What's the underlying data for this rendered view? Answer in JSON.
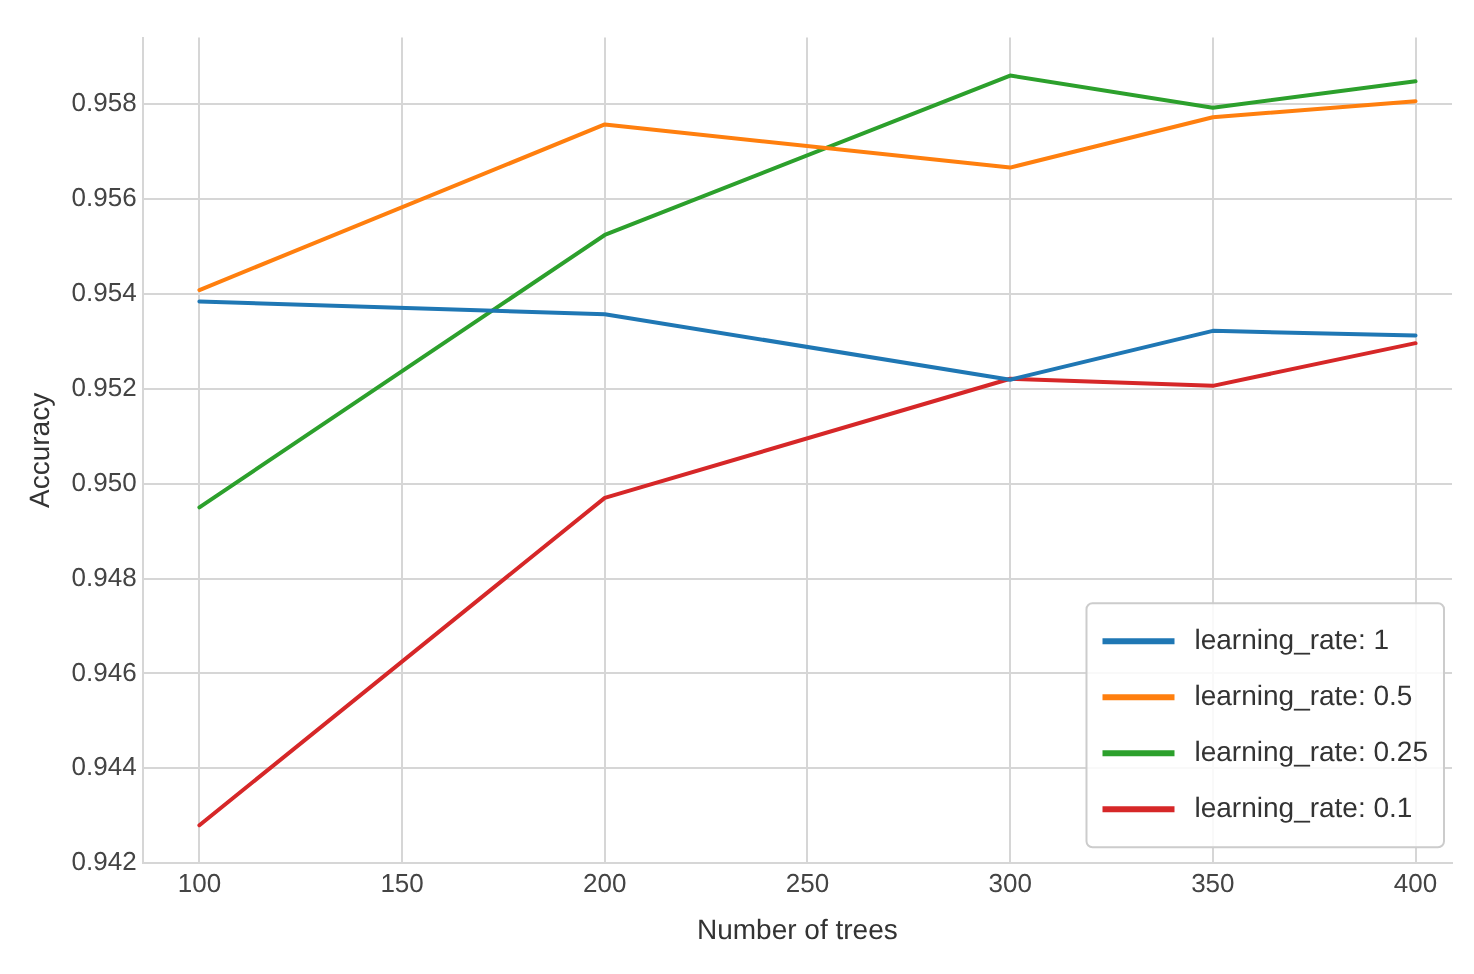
{
  "chart_data": {
    "type": "line",
    "xlabel": "Number of trees",
    "ylabel": "Accuracy",
    "x": [
      100,
      200,
      300,
      350,
      400
    ],
    "series": [
      {
        "name": "learning_rate: 1",
        "color": "#1f77b4",
        "values": [
          0.95384,
          0.95357,
          0.95219,
          0.95322,
          0.95312
        ]
      },
      {
        "name": "learning_rate: 0.5",
        "color": "#ff7f0e",
        "values": [
          0.95408,
          0.95757,
          0.95666,
          0.95772,
          0.95806
        ]
      },
      {
        "name": "learning_rate: 0.25",
        "color": "#2ca02c",
        "values": [
          0.9495,
          0.95524,
          0.9586,
          0.95792,
          0.95848
        ]
      },
      {
        "name": "learning_rate: 0.1",
        "color": "#d62728",
        "values": [
          0.9428,
          0.9497,
          0.95221,
          0.95206,
          0.95296
        ]
      }
    ],
    "xlim": [
      86,
      409
    ],
    "xticks": [
      100,
      150,
      200,
      250,
      300,
      350,
      400
    ],
    "ylim": [
      0.942,
      0.9594
    ],
    "yticks": [
      {
        "value": 0.942,
        "label": "0.942"
      },
      {
        "value": 0.944,
        "label": "0.944"
      },
      {
        "value": 0.946,
        "label": "0.946"
      },
      {
        "value": 0.948,
        "label": "0.948"
      },
      {
        "value": 0.95,
        "label": "0.950"
      },
      {
        "value": 0.952,
        "label": "0.952"
      },
      {
        "value": 0.954,
        "label": "0.954"
      },
      {
        "value": 0.956,
        "label": "0.956"
      },
      {
        "value": 0.958,
        "label": "0.958"
      }
    ],
    "grid": true,
    "legend": "bottom right",
    "marker": "none",
    "line_style": "solid"
  }
}
